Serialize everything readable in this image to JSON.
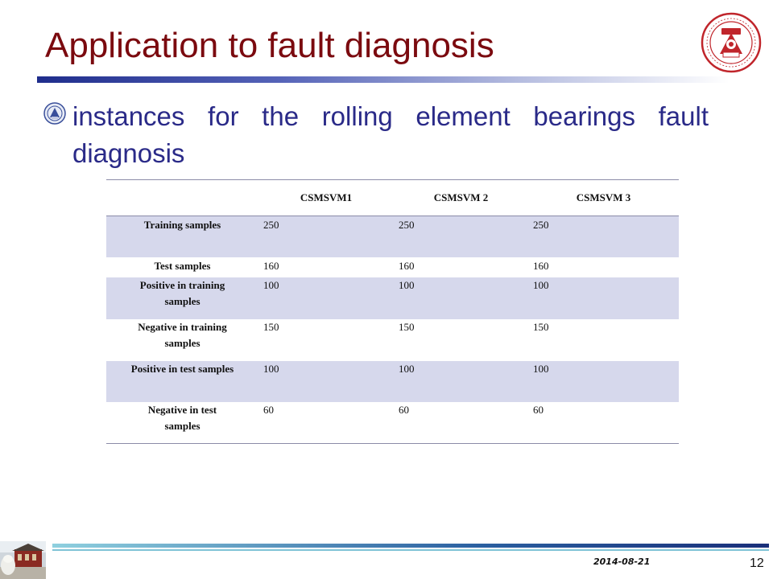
{
  "slide": {
    "title": "Application to fault diagnosis",
    "bullet": "instances for the rolling element bearings fault diagnosis",
    "date": "2014-08-21",
    "page_number": "12"
  },
  "table": {
    "headers": [
      "",
      "CSMSVM1",
      "CSMSVM 2",
      "CSMSVM 3"
    ],
    "rows": [
      {
        "label_lines": [
          "Training  samples"
        ],
        "values": [
          "250",
          "250",
          "250"
        ]
      },
      {
        "label_lines": [
          "Test samples"
        ],
        "values": [
          "160",
          "160",
          "160"
        ]
      },
      {
        "label_lines": [
          "Positive in training",
          "samples"
        ],
        "values": [
          "100",
          "100",
          "100"
        ]
      },
      {
        "label_lines": [
          "Negative in training",
          "samples"
        ],
        "values": [
          "150",
          "150",
          "150"
        ]
      },
      {
        "label_lines": [
          "Positive in  test samples"
        ],
        "values": [
          "100",
          "100",
          "100"
        ]
      },
      {
        "label_lines": [
          "Negative in test",
          "samples"
        ],
        "values": [
          "60",
          "60",
          "60"
        ]
      }
    ]
  },
  "colors": {
    "title": "#7b0a0f",
    "bullet_text": "#2a2a88",
    "row_shade": "#d6d8ec",
    "logo_red": "#c0252b"
  },
  "icons": {
    "logo": "university-seal-icon",
    "bullet": "seal-bullet-icon",
    "photo": "campus-photo-icon"
  }
}
